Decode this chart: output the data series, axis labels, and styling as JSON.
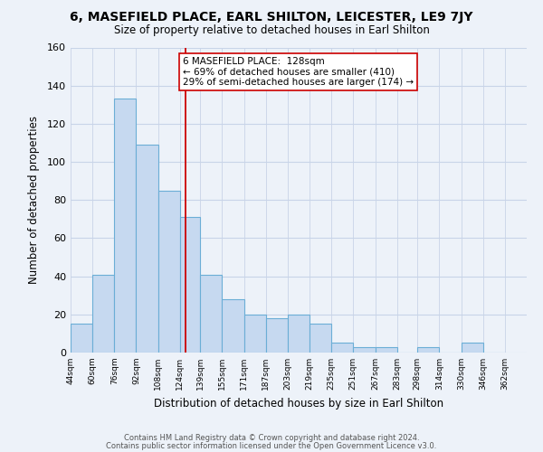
{
  "title": "6, MASEFIELD PLACE, EARL SHILTON, LEICESTER, LE9 7JY",
  "subtitle": "Size of property relative to detached houses in Earl Shilton",
  "xlabel": "Distribution of detached houses by size in Earl Shilton",
  "ylabel": "Number of detached properties",
  "bar_left_edges": [
    44,
    60,
    76,
    92,
    108,
    124,
    139,
    155,
    171,
    187,
    203,
    219,
    235,
    251,
    267,
    283,
    298,
    314,
    330,
    346
  ],
  "bar_widths": [
    16,
    16,
    16,
    16,
    16,
    15,
    16,
    16,
    16,
    16,
    16,
    16,
    16,
    16,
    16,
    15,
    16,
    16,
    16,
    16
  ],
  "bar_heights": [
    15,
    41,
    133,
    109,
    85,
    71,
    41,
    28,
    20,
    18,
    20,
    15,
    5,
    3,
    3,
    0,
    3,
    0,
    5,
    0
  ],
  "bar_color": "#c6d9f0",
  "bar_edge_color": "#6baed6",
  "property_line_x": 128,
  "property_line_color": "#cc0000",
  "tick_labels": [
    "44sqm",
    "60sqm",
    "76sqm",
    "92sqm",
    "108sqm",
    "124sqm",
    "139sqm",
    "155sqm",
    "171sqm",
    "187sqm",
    "203sqm",
    "219sqm",
    "235sqm",
    "251sqm",
    "267sqm",
    "283sqm",
    "298sqm",
    "314sqm",
    "330sqm",
    "346sqm",
    "362sqm"
  ],
  "annotation_line1": "6 MASEFIELD PLACE:  128sqm",
  "annotation_line2": "← 69% of detached houses are smaller (410)",
  "annotation_line3": "29% of semi-detached houses are larger (174) →",
  "annotation_box_color": "#ffffff",
  "annotation_box_edge": "#cc0000",
  "footer_line1": "Contains HM Land Registry data © Crown copyright and database right 2024.",
  "footer_line2": "Contains public sector information licensed under the Open Government Licence v3.0.",
  "ylim": [
    0,
    160
  ],
  "xlim_min": 44,
  "xlim_max": 378,
  "background_color": "#edf2f9",
  "grid_color": "#c8d4e8",
  "yticks": [
    0,
    20,
    40,
    60,
    80,
    100,
    120,
    140,
    160
  ]
}
